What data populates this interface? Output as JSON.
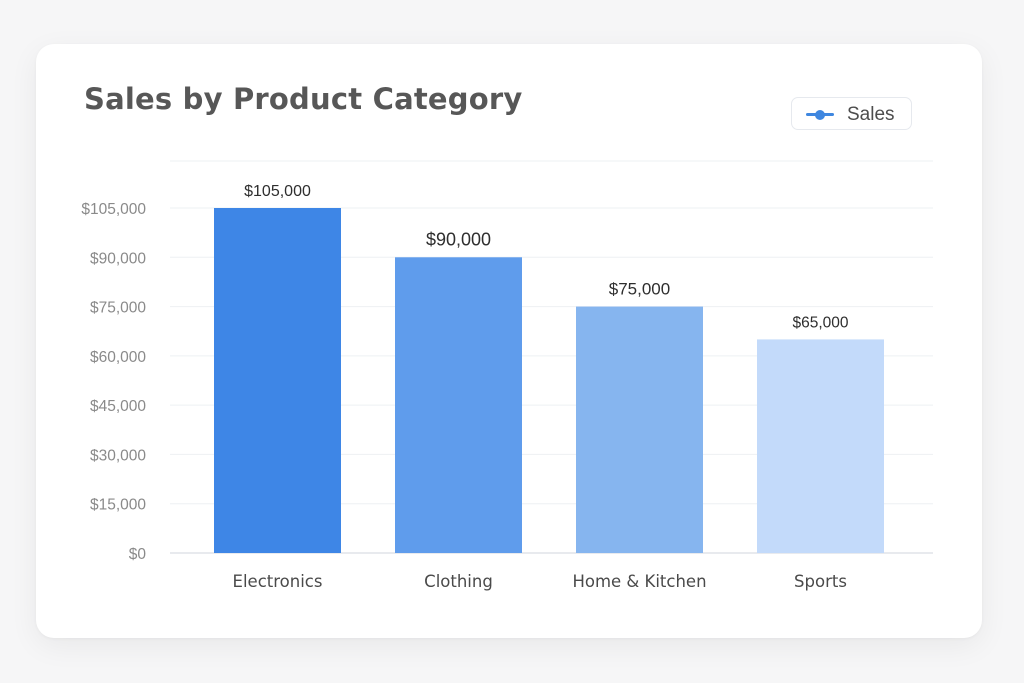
{
  "chart_data": {
    "type": "bar",
    "title": "Sales by Product Category",
    "categories": [
      "Electronics",
      "Clothing",
      "Home & Kitchen",
      "Sports"
    ],
    "series": [
      {
        "name": "Sales",
        "values": [
          105000,
          90000,
          75000,
          65000
        ],
        "data_labels": [
          "$105,000",
          "$90,000",
          "$75,000",
          "$65,000"
        ],
        "colors": [
          "#3e86e6",
          "#5f9cec",
          "#86b5ef",
          "#c3dafa"
        ]
      }
    ],
    "y_ticks": [
      0,
      15000,
      30000,
      45000,
      60000,
      75000,
      90000,
      105000
    ],
    "y_tick_labels": [
      "$0",
      "$15,000",
      "$30,000",
      "$45,000",
      "$60,000",
      "$75,000",
      "$90,000",
      "$105,000"
    ],
    "ylim": [
      0,
      120000
    ],
    "xlabel": "",
    "ylabel": "",
    "grid": true,
    "legend_position": "top-right"
  },
  "colors": {
    "legend_swatch": "#3f87e0",
    "gridline": "#eef0f3",
    "axis": "#d9dde3",
    "tick_text": "#8a8a8a",
    "category_text": "#4a4a4a",
    "data_label_text": "#2e2e2e"
  }
}
